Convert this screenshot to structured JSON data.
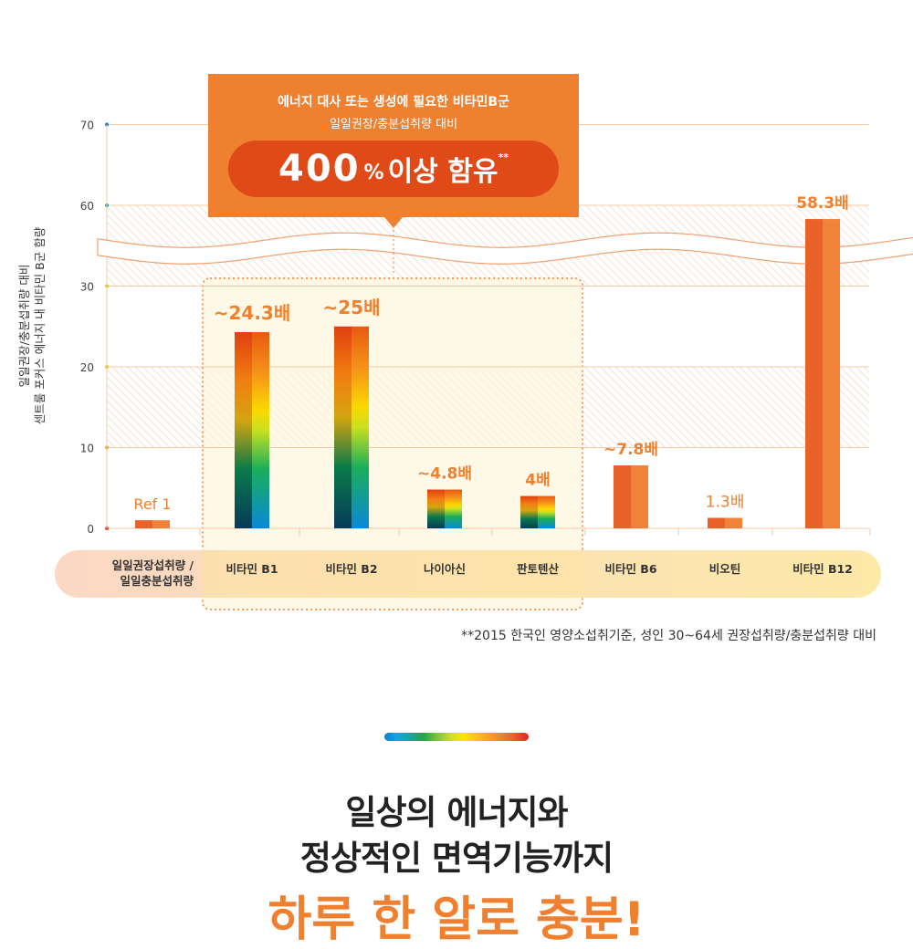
{
  "callout": {
    "line1": "에너지 대사 또는 생성에 필요한 비타민B군",
    "line2": "일일권장/충분섭취량 대비",
    "big_number": "400",
    "percent": "%",
    "big_text": "이상 함유",
    "mark": "**"
  },
  "y_axis_label_line1": "일일권장/충분섭취량 대비",
  "y_axis_label_line2": "센트룸 포커스 에너지 내 비타민 B군 함량",
  "footnote": "**2015 한국인 영양소섭취기준, 성인 30~64세 권장섭취량/충분섭취량 대비",
  "headline": {
    "line1": "일상의 에너지와",
    "line2": "정상적인 면역기능까지",
    "line3": "하루 한 알로 충분!"
  },
  "colors": {
    "orange": "#ef8030",
    "dark_orange": "#df4a18",
    "highlight": "#fdf6dc",
    "grid": "#f4c9a8"
  },
  "chart_data": {
    "type": "bar",
    "categories": [
      "일일권장섭취량 / 일일충분섭취량",
      "비타민 B1",
      "비타민 B2",
      "나이아신",
      "판토텐산",
      "비타민 B6",
      "비오틴",
      "비타민 B12"
    ],
    "values": [
      1,
      24.3,
      25,
      4.8,
      4,
      7.8,
      1.3,
      58.3
    ],
    "data_labels": [
      "Ref 1",
      "~24.3배",
      "~25배",
      "~4.8배",
      "4배",
      "~7.8배",
      "1.3배",
      "58.3배"
    ],
    "gradient_bars": [
      false,
      true,
      true,
      true,
      true,
      false,
      false,
      false
    ],
    "highlighted_categories": [
      "비타민 B1",
      "비타민 B2",
      "나이아신",
      "판토텐산"
    ],
    "yticks": [
      0,
      10,
      20,
      30,
      60,
      70
    ],
    "ylim": [
      0,
      70
    ],
    "axis_break": [
      30,
      60
    ],
    "grid": true
  }
}
